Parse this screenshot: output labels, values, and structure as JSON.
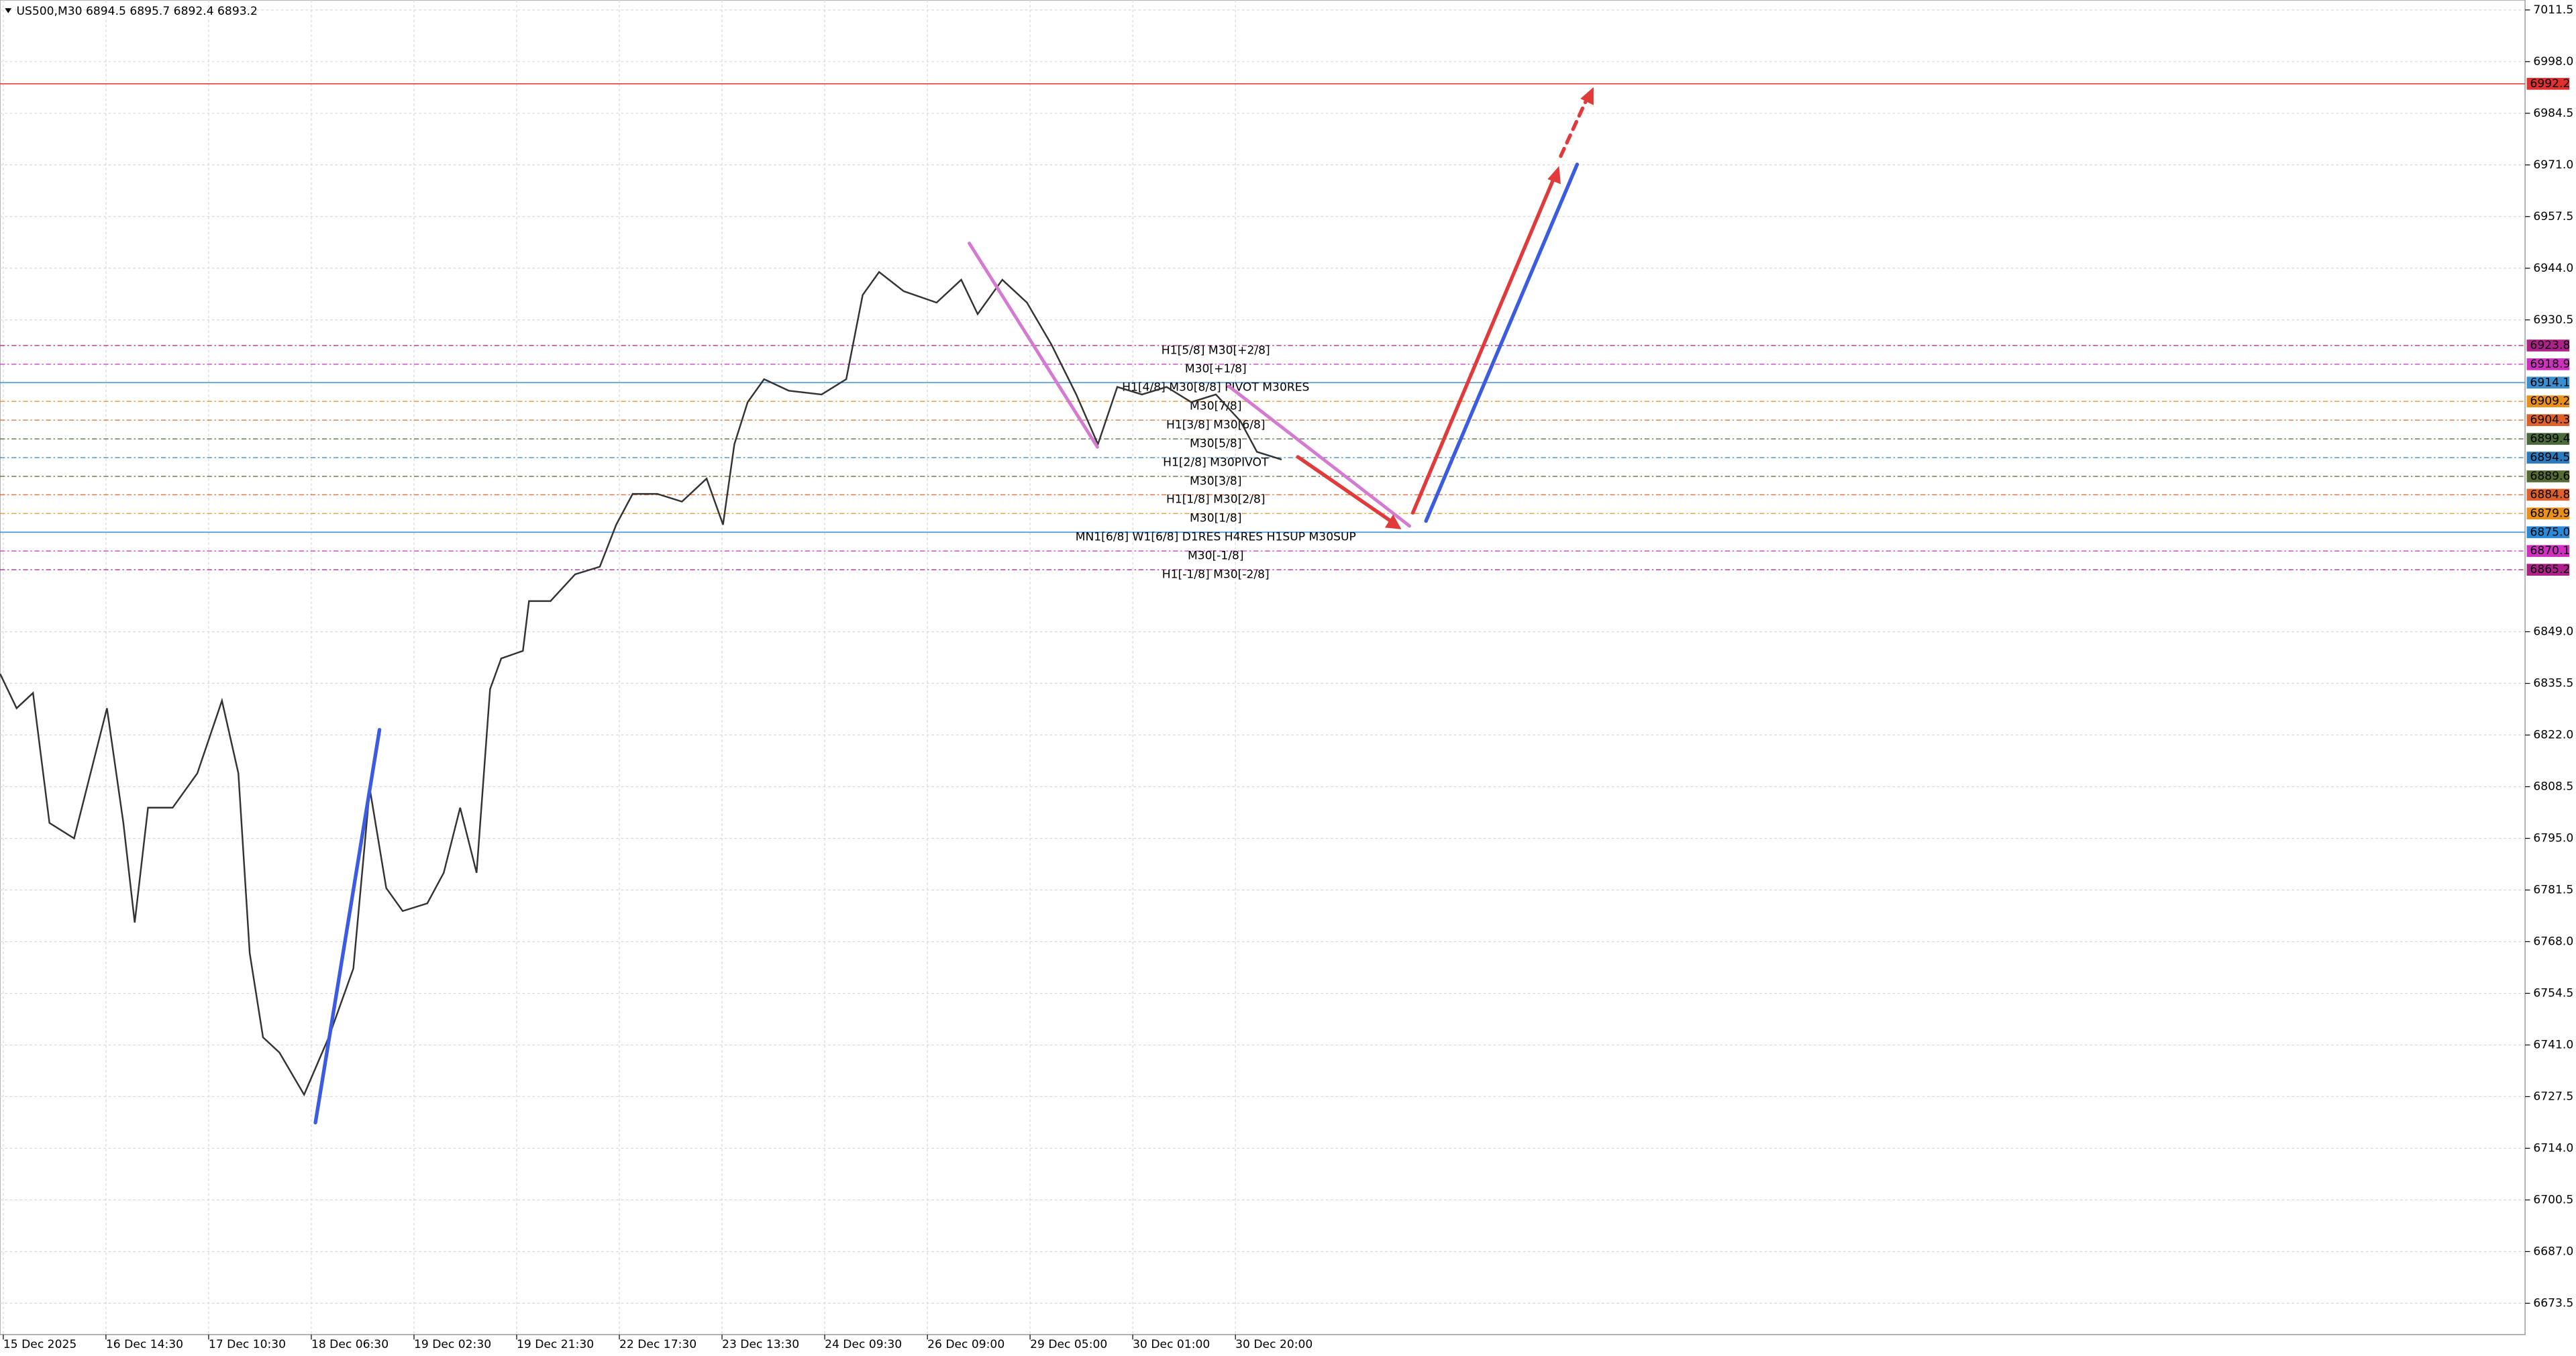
{
  "chart_data": {
    "type": "line",
    "title": "US500,M30  6894.5 6895.7 6892.4 6893.2",
    "xlim": [
      -0.032,
      24.56
    ],
    "ylim": [
      6665.3,
      7014.1
    ],
    "xticks": [
      {
        "value": 0,
        "label": "15 Dec 2025"
      },
      {
        "value": 1,
        "label": "16 Dec 14:30"
      },
      {
        "value": 2,
        "label": "17 Dec 10:30"
      },
      {
        "value": 3,
        "label": "18 Dec 06:30"
      },
      {
        "value": 4,
        "label": "19 Dec 02:30"
      },
      {
        "value": 5,
        "label": "19 Dec 21:30"
      },
      {
        "value": 6,
        "label": "22 Dec 17:30"
      },
      {
        "value": 7,
        "label": "23 Dec 13:30"
      },
      {
        "value": 8,
        "label": "24 Dec 09:30"
      },
      {
        "value": 9,
        "label": "26 Dec 09:00"
      },
      {
        "value": 10,
        "label": "29 Dec 05:00"
      },
      {
        "value": 11,
        "label": "30 Dec 01:00"
      },
      {
        "value": 12,
        "label": "30 Dec 20:00"
      }
    ],
    "yticks": [
      7011.5,
      {
        "value": 6998,
        "label": "6998.0"
      },
      6984.5,
      {
        "value": 6971,
        "label": "6971.0"
      },
      6957.5,
      {
        "value": 6944,
        "label": "6944.0"
      },
      6930.5,
      {
        "value": 6849,
        "label": "6849.0"
      },
      6835.5,
      {
        "value": 6822,
        "label": "6822.0"
      },
      6808.5,
      {
        "value": 6795,
        "label": "6795.0"
      },
      6781.5,
      {
        "value": 6768,
        "label": "6768.0"
      },
      6754.5,
      {
        "value": 6741,
        "label": "6741.0"
      },
      6727.5,
      {
        "value": 6714,
        "label": "6714.0"
      },
      6700.5,
      {
        "value": 6687,
        "label": "6687.0"
      },
      6673.5
    ],
    "grid": true,
    "series": [
      {
        "name": "US500",
        "color": "#333333",
        "x": [
          -0.03,
          0.13,
          0.29,
          0.45,
          0.69,
          0.85,
          1.01,
          1.17,
          1.28,
          1.41,
          1.65,
          1.89,
          2.13,
          2.29,
          2.4,
          2.53,
          2.69,
          2.93,
          3.17,
          3.41,
          3.57,
          3.73,
          3.89,
          4.13,
          4.29,
          4.45,
          4.61,
          4.74,
          4.85,
          5.06,
          5.12,
          5.33,
          5.57,
          5.81,
          5.97,
          6.13,
          6.37,
          6.61,
          6.85,
          7.01,
          7.12,
          7.25,
          7.41,
          7.65,
          7.97,
          8.21,
          8.37,
          8.53,
          8.77,
          9.09,
          9.33,
          9.49,
          9.73,
          9.97,
          10.21,
          10.45,
          10.66,
          10.85,
          11.09,
          11.33,
          11.57,
          11.81,
          12.05,
          12.21,
          12.45
        ],
        "values": [
          6838,
          6829,
          6833,
          6799,
          6795,
          6812,
          6829,
          6799,
          6773,
          6803,
          6803,
          6812,
          6831,
          6812,
          6765,
          6743,
          6739,
          6728,
          6743,
          6761,
          6808,
          6782,
          6776,
          6778,
          6786,
          6803,
          6786,
          6834,
          6842,
          6844,
          6857,
          6857,
          6864,
          6866,
          6877,
          6885,
          6885,
          6883,
          6889,
          6877,
          6898,
          6909,
          6915,
          6912,
          6911,
          6915,
          6937,
          6943,
          6938,
          6935,
          6941,
          6932,
          6941,
          6935,
          6924,
          6911,
          6898,
          6913,
          6911,
          6913,
          6909,
          6911,
          6904,
          6896,
          6894
        ]
      }
    ],
    "levels": [
      {
        "value": 6992.2,
        "color": "#e03030"
      },
      {
        "value": 6923.8,
        "label": "H1[5/8] M30[+2/8]",
        "color": "#b0208a"
      },
      {
        "value": 6918.9,
        "label": "M30[+1/8]",
        "color": "#d030c0"
      },
      {
        "value": 6914.1,
        "label": "H1[4/8] M30[8/8] PIVOT M30RES",
        "color": "#3a8fd0"
      },
      {
        "value": 6909.2,
        "label": "M30[7/8]",
        "color": "#e8901a"
      },
      {
        "value": 6904.3,
        "label": "H1[3/8] M30[6/8]",
        "color": "#e0602a"
      },
      {
        "value": 6899.4,
        "label": "M30[5/8]",
        "color": "#4a6a3a"
      },
      {
        "value": 6894.5,
        "label": "H1[2/8] M30PIVOT",
        "color": "#2a7ac0"
      },
      {
        "value": 6889.6,
        "label": "M30[3/8]",
        "color": "#556b2f"
      },
      {
        "value": 6884.8,
        "label": "H1[1/8] M30[2/8]",
        "color": "#e0602a"
      },
      {
        "value": 6879.9,
        "label": "M30[1/8]",
        "color": "#e8901a"
      },
      {
        "value": 6875.0,
        "price_label": "6875.0",
        "label": "MN1[6/8] W1[6/8] D1RES H4RES H1SUP M30SUP",
        "color": "#2a8ad8"
      },
      {
        "value": 6870.1,
        "label": "M30[-1/8]",
        "color": "#d030c0"
      },
      {
        "value": 6865.2,
        "label": "H1[-1/8] M30[-2/8]",
        "color": "#b0208a"
      }
    ]
  }
}
